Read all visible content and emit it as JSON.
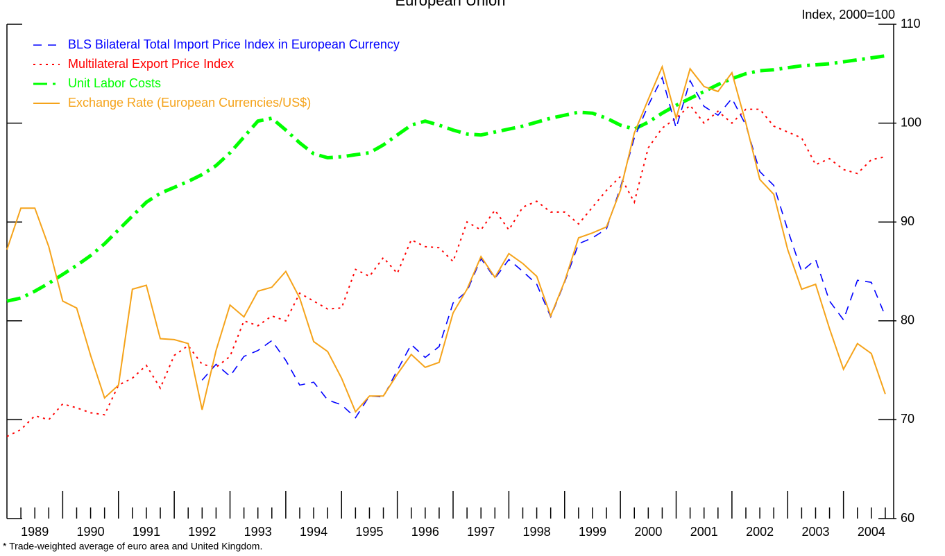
{
  "chart_data": {
    "type": "line",
    "title": "European Union",
    "y_label": "Index, 2000=100",
    "footnote": "* Trade-weighted average of euro area and United Kingdom.",
    "x": [
      1989,
      1989.25,
      1989.5,
      1989.75,
      1990,
      1990.25,
      1990.5,
      1990.75,
      1991,
      1991.25,
      1991.5,
      1991.75,
      1992,
      1992.25,
      1992.5,
      1992.75,
      1993,
      1993.25,
      1993.5,
      1993.75,
      1994,
      1994.25,
      1994.5,
      1994.75,
      1995,
      1995.25,
      1995.5,
      1995.75,
      1996,
      1996.25,
      1996.5,
      1996.75,
      1997,
      1997.25,
      1997.5,
      1997.75,
      1998,
      1998.25,
      1998.5,
      1998.75,
      1999,
      1999.25,
      1999.5,
      1999.75,
      2000,
      2000.25,
      2000.5,
      2000.75,
      2001,
      2001.25,
      2001.5,
      2001.75,
      2002,
      2002.25,
      2002.5,
      2002.75,
      2003,
      2003.25,
      2003.5,
      2003.75,
      2004,
      2004.25,
      2004.5,
      2004.75
    ],
    "xlim": [
      1989,
      2004.9
    ],
    "xticks": [
      {
        "value": 1989.5,
        "label": "1989"
      },
      {
        "value": 1990.5,
        "label": "1990"
      },
      {
        "value": 1991.5,
        "label": "1991"
      },
      {
        "value": 1992.5,
        "label": "1992"
      },
      {
        "value": 1993.5,
        "label": "1993"
      },
      {
        "value": 1994.5,
        "label": "1994"
      },
      {
        "value": 1995.5,
        "label": "1995"
      },
      {
        "value": 1996.5,
        "label": "1996"
      },
      {
        "value": 1997.5,
        "label": "1997"
      },
      {
        "value": 1998.5,
        "label": "1998"
      },
      {
        "value": 1999.5,
        "label": "1999"
      },
      {
        "value": 2000.5,
        "label": "2000"
      },
      {
        "value": 2001.5,
        "label": "2001"
      },
      {
        "value": 2002.5,
        "label": "2002"
      },
      {
        "value": 2003.5,
        "label": "2003"
      },
      {
        "value": 2004.5,
        "label": "2004"
      }
    ],
    "ylim": [
      60,
      110
    ],
    "yticks": [
      60,
      70,
      80,
      90,
      100,
      110
    ],
    "series": [
      {
        "name": "BLS Bilateral Total Import Price Index in European Currency",
        "color": "#0000ff",
        "style": "dashed",
        "values": [
          null,
          null,
          null,
          null,
          null,
          null,
          null,
          null,
          null,
          null,
          null,
          null,
          null,
          null,
          74.0,
          75.6,
          74.4,
          76.4,
          77.0,
          78.0,
          76.0,
          73.5,
          73.8,
          72.0,
          71.5,
          70.2,
          72.4,
          72.3,
          75.0,
          77.6,
          76.3,
          77.4,
          81.8,
          83.0,
          86.3,
          84.3,
          86.2,
          85.0,
          83.7,
          80.4,
          83.9,
          87.8,
          88.4,
          89.3,
          93.5,
          98.5,
          101.8,
          104.6,
          99.5,
          104.3,
          101.7,
          100.8,
          102.5,
          99.8,
          95.1,
          93.7,
          89.2,
          85.0,
          86.2,
          82.0,
          80.1,
          84.1,
          83.9,
          80.5
        ]
      },
      {
        "name": "Multilateral Export Price Index",
        "color": "#ff0000",
        "style": "dotted",
        "values": [
          68.3,
          69.0,
          70.4,
          70.0,
          71.6,
          71.2,
          70.7,
          70.5,
          73.5,
          74.2,
          75.5,
          73.2,
          76.5,
          77.5,
          75.6,
          75.3,
          76.4,
          80.0,
          79.5,
          80.5,
          80.0,
          82.8,
          82.0,
          81.2,
          81.3,
          85.2,
          84.5,
          86.4,
          84.8,
          88.2,
          87.5,
          87.4,
          86.0,
          90.0,
          89.2,
          91.2,
          89.2,
          91.5,
          92.1,
          91.0,
          91.0,
          89.8,
          91.5,
          93.2,
          94.6,
          92.0,
          97.5,
          99.5,
          100.5,
          101.8,
          100.0,
          101.2,
          100.0,
          101.4,
          101.4,
          99.7,
          99.1,
          98.5,
          95.8,
          96.4,
          95.3,
          94.9,
          96.3,
          96.6
        ]
      },
      {
        "name": "Unit Labor Costs",
        "color": "#00ff00",
        "style": "dashdot",
        "values": [
          82.0,
          82.3,
          83.0,
          83.8,
          84.7,
          85.6,
          86.6,
          87.8,
          89.2,
          90.6,
          92.0,
          92.9,
          93.5,
          94.1,
          94.8,
          95.7,
          97.0,
          98.6,
          100.2,
          100.5,
          99.3,
          98.0,
          96.9,
          96.5,
          96.6,
          96.8,
          97.0,
          97.8,
          98.8,
          99.8,
          100.2,
          99.8,
          99.3,
          98.9,
          98.8,
          99.1,
          99.4,
          99.7,
          100.1,
          100.5,
          100.8,
          101.1,
          101.0,
          100.5,
          99.8,
          99.4,
          100.1,
          101.0,
          101.8,
          102.5,
          103.2,
          103.9,
          104.5,
          105.0,
          105.3,
          105.4,
          105.6,
          105.8,
          105.9,
          106.0,
          106.2,
          106.4,
          106.6,
          106.8
        ]
      },
      {
        "name": "Exchange Rate (European Currencies/US$)",
        "color": "#f5a31a",
        "style": "solid",
        "values": [
          87.2,
          91.4,
          91.4,
          87.5,
          82.0,
          81.3,
          76.5,
          72.2,
          73.5,
          83.2,
          83.6,
          78.2,
          78.1,
          77.7,
          71.0,
          77.0,
          81.6,
          80.4,
          83.0,
          83.4,
          85.0,
          82.3,
          77.9,
          76.9,
          74.2,
          70.8,
          72.4,
          72.4,
          74.6,
          76.6,
          75.3,
          75.8,
          80.8,
          83.2,
          86.5,
          84.4,
          86.8,
          85.8,
          84.5,
          80.5,
          84.0,
          88.4,
          88.9,
          89.5,
          93.2,
          99.0,
          102.4,
          105.7,
          100.5,
          105.5,
          103.7,
          103.2,
          105.1,
          100.0,
          94.3,
          92.8,
          87.2,
          83.2,
          83.7,
          79.2,
          75.1,
          77.7,
          76.7,
          72.6
        ]
      }
    ]
  }
}
